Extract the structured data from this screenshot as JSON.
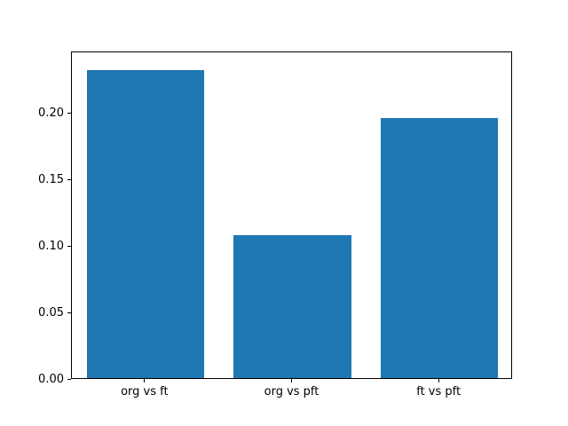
{
  "chart_data": {
    "type": "bar",
    "title": "",
    "xlabel": "",
    "ylabel": "",
    "categories": [
      "org vs ft",
      "org vs pft",
      "ft vs pft"
    ],
    "values": [
      0.232,
      0.108,
      0.196
    ],
    "yticks": [
      0.0,
      0.05,
      0.1,
      0.15,
      0.2
    ],
    "ytick_labels": [
      "0.00",
      "0.05",
      "0.10",
      "0.15",
      "0.20"
    ],
    "ylim": [
      0,
      0.2468
    ],
    "bar_color": "#1f77b4",
    "axis_color": "#000000",
    "background_color": "#ffffff",
    "grid": false,
    "legend": null
  }
}
